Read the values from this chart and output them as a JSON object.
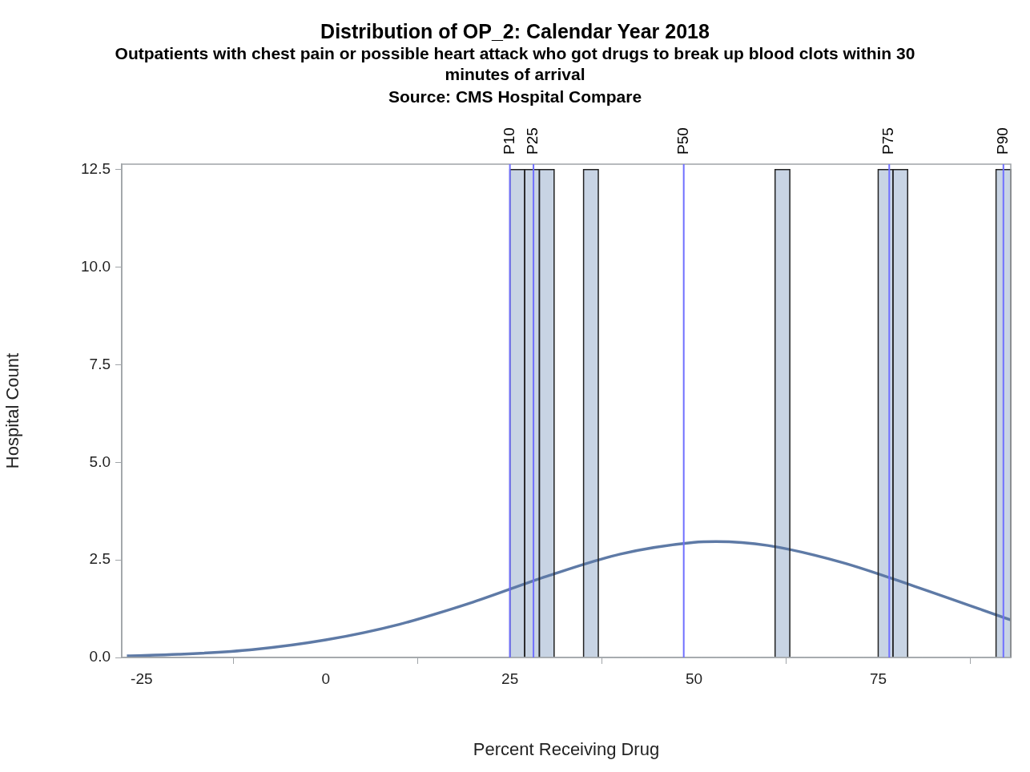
{
  "chart_data": {
    "type": "histogram",
    "title": "Distribution of OP_2:  Calendar Year 2018",
    "subtitle": "Outpatients with chest pain or possible heart attack who got drugs to break up blood clots within 30 minutes of arrival",
    "annotations": [
      "Source: CMS Hospital Compare"
    ],
    "xlabel": "Percent Receiving Drug",
    "ylabel": "Hospital Count",
    "series": [
      {
        "color": "#c8d4e4",
        "bins": [
          25,
          27,
          29,
          31,
          33,
          35,
          37,
          39,
          41,
          43,
          45,
          47,
          49,
          51,
          53,
          55,
          57,
          59,
          61,
          63,
          65,
          67,
          69,
          71,
          73,
          75,
          77,
          79,
          81,
          83,
          85,
          87,
          89,
          91,
          93
        ],
        "values": [
          12.5,
          12.5,
          12.5,
          0,
          0,
          12.5,
          0,
          0,
          0,
          0,
          0,
          0,
          0,
          0,
          0,
          0,
          0,
          0,
          12.5,
          0,
          0,
          0,
          0,
          0,
          0,
          12.5,
          12.5,
          0,
          0,
          0,
          0,
          0,
          0,
          12.5
        ]
      },
      {
        "type": "line",
        "color": "#5e7aa6",
        "x": [
          -27,
          -20,
          -10,
          0,
          10,
          20,
          30,
          40,
          50,
          53,
          60,
          70,
          80,
          93
        ],
        "values": [
          0.04,
          0.08,
          0.2,
          0.45,
          0.85,
          1.42,
          2.08,
          2.65,
          2.95,
          2.97,
          2.87,
          2.44,
          1.82,
          0.96
        ]
      }
    ],
    "xlim": [
      -27.7,
      93
    ],
    "xticks": [
      -25,
      0,
      25,
      50,
      75
    ],
    "ylim": [
      0,
      12.64
    ],
    "yticks": [
      {
        "value": 0,
        "label": "0.0"
      },
      {
        "value": 2.5,
        "label": "2.5"
      },
      {
        "value": 5,
        "label": "5.0"
      },
      {
        "value": 7.5,
        "label": "7.5"
      },
      {
        "value": 10,
        "label": "10.0"
      },
      {
        "value": 12.5,
        "label": "12.5"
      }
    ],
    "ref_lines": [
      {
        "axis": "x",
        "value": 25,
        "label": "P10",
        "color": "#7070ff"
      },
      {
        "axis": "x",
        "value": 28.2,
        "label": "P25",
        "color": "#7070ff"
      },
      {
        "axis": "x",
        "value": 48.6,
        "label": "P50",
        "color": "#7070ff"
      },
      {
        "axis": "x",
        "value": 76.5,
        "label": "P75",
        "color": "#7070ff"
      },
      {
        "axis": "x",
        "value": 92,
        "label": "P90",
        "color": "#7070ff"
      }
    ],
    "grid": false,
    "legend": false,
    "marker": "none"
  }
}
